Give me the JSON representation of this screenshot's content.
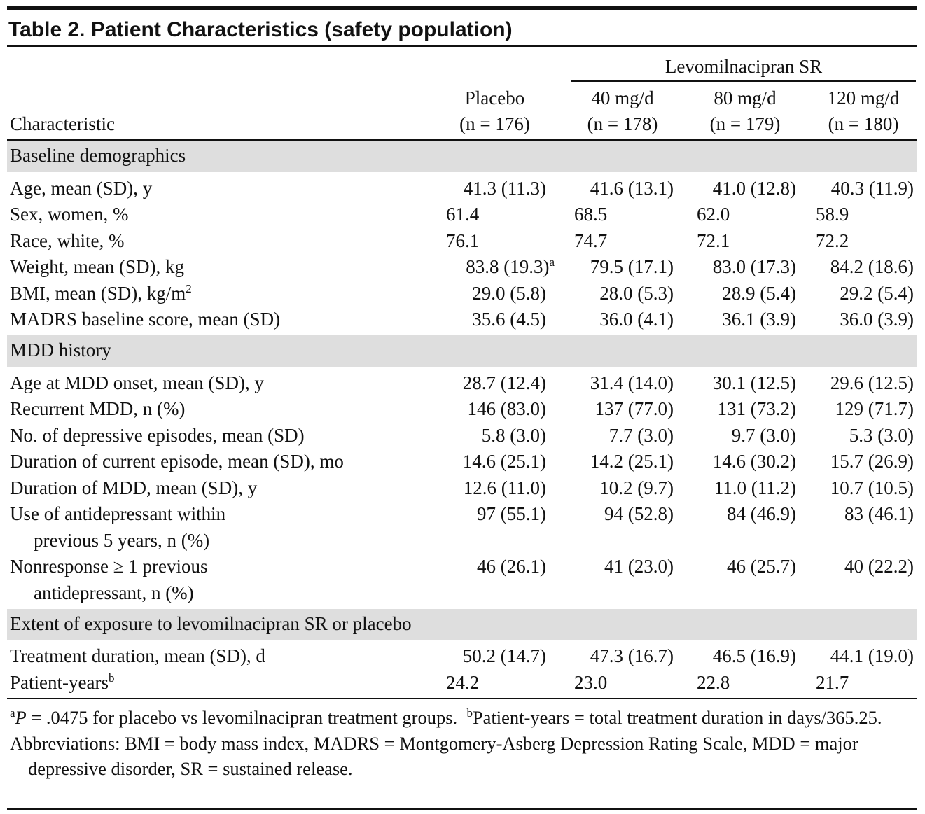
{
  "title": "Table 2. Patient Characteristics (safety population)",
  "header": {
    "first": "Characteristic",
    "group": "Levomilnacipran SR",
    "columns": [
      {
        "name": "Placebo",
        "n": "(n = 176)"
      },
      {
        "name": "40 mg/d",
        "n": "(n = 178)"
      },
      {
        "name": "80 mg/d",
        "n": "(n = 179)"
      },
      {
        "name": "120 mg/d",
        "n": "(n = 180)"
      }
    ]
  },
  "sections": [
    {
      "heading": "Baseline demographics",
      "rows": [
        {
          "label": "Age, mean (SD), y",
          "cells": [
            "41.3 (11.3)",
            "41.6 (13.1)",
            "41.0 (12.8)",
            "40.3 (11.9)"
          ]
        },
        {
          "label": "Sex, women, %",
          "cells": [
            "61.4",
            "68.5",
            "62.0",
            "58.9"
          ]
        },
        {
          "label": "Race, white, %",
          "cells": [
            "76.1",
            "74.7",
            "72.1",
            "72.2"
          ]
        },
        {
          "label": "Weight, mean (SD), kg",
          "cells": [
            {
              "text": "83.8 (19.3)",
              "sup": "a"
            },
            "79.5 (17.1)",
            "83.0 (17.3)",
            "84.2 (18.6)"
          ]
        },
        {
          "label": "BMI, mean (SD), kg/m",
          "label_sup": "2",
          "cells": [
            "29.0 (5.8)",
            "28.0 (5.3)",
            "28.9 (5.4)",
            "29.2 (5.4)"
          ]
        },
        {
          "label": "MADRS baseline score, mean (SD)",
          "cells": [
            "35.6 (4.5)",
            "36.0 (4.1)",
            "36.1 (3.9)",
            "36.0 (3.9)"
          ]
        }
      ]
    },
    {
      "heading": "MDD history",
      "rows": [
        {
          "label": "Age at MDD onset, mean (SD), y",
          "cells": [
            "28.7 (12.4)",
            "31.4 (14.0)",
            "30.1 (12.5)",
            "29.6 (12.5)"
          ]
        },
        {
          "label": "Recurrent MDD, n (%)",
          "cells": [
            "146 (83.0)",
            "137 (77.0)",
            "131 (73.2)",
            "129 (71.7)"
          ]
        },
        {
          "label": "No. of depressive episodes, mean (SD)",
          "cells": [
            "5.8 (3.0)",
            "7.7 (3.0)",
            "9.7 (3.0)",
            "5.3 (3.0)"
          ]
        },
        {
          "label": "Duration of current episode, mean (SD), mo",
          "cells": [
            "14.6 (25.1)",
            "14.2 (25.1)",
            "14.6 (30.2)",
            "15.7 (26.9)"
          ]
        },
        {
          "label": "Duration of MDD, mean (SD), y",
          "cells": [
            "12.6 (11.0)",
            "10.2 (9.7)",
            "11.0 (11.2)",
            "10.7 (10.5)"
          ]
        },
        {
          "label": [
            "Use of antidepressant within",
            "previous 5 years, n (%)"
          ],
          "cells": [
            "97 (55.1)",
            "94 (52.8)",
            "84 (46.9)",
            "83 (46.1)"
          ]
        },
        {
          "label": [
            "Nonresponse ≥ 1 previous",
            "antidepressant, n (%)"
          ],
          "cells": [
            "46 (26.1)",
            "41 (23.0)",
            "46 (25.7)",
            "40 (22.2)"
          ]
        }
      ]
    },
    {
      "heading": "Extent of exposure to levomilnacipran SR or placebo",
      "rows": [
        {
          "label": "Treatment duration, mean (SD), d",
          "cells": [
            "50.2 (14.7)",
            "47.3 (16.7)",
            "46.5 (16.9)",
            "44.1 (19.0)"
          ]
        },
        {
          "label": "Patient-years",
          "label_sup": "b",
          "cells": [
            "24.2",
            "23.0",
            "22.8",
            "21.7"
          ]
        }
      ]
    }
  ],
  "footnotes": {
    "a": {
      "mark": "a",
      "italic": "P",
      "text": " = .0475 for placebo vs levomilnacipran treatment groups."
    },
    "b": {
      "mark": "b",
      "text": "Patient-years = total treatment duration in days/365.25."
    },
    "abbreviations": "Abbreviations: BMI = body mass index, MADRS = Montgomery-Asberg Depression Rating Scale, MDD = major depressive disorder, SR = sustained release."
  }
}
